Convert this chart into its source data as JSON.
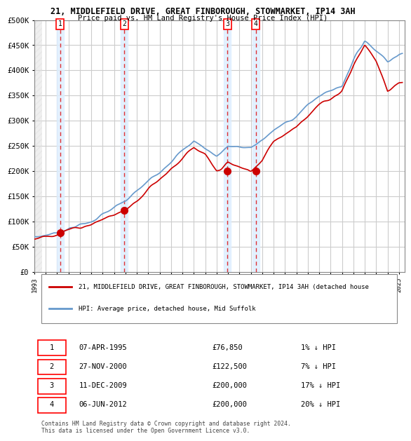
{
  "title1": "21, MIDDLEFIELD DRIVE, GREAT FINBOROUGH, STOWMARKET, IP14 3AH",
  "title2": "Price paid vs. HM Land Registry's House Price Index (HPI)",
  "xlim_start": 1993.0,
  "xlim_end": 2025.5,
  "ylim_min": 0,
  "ylim_max": 500000,
  "yticks": [
    0,
    50000,
    100000,
    150000,
    200000,
    250000,
    300000,
    350000,
    400000,
    450000,
    500000
  ],
  "ytick_labels": [
    "£0",
    "£50K",
    "£100K",
    "£150K",
    "£200K",
    "£250K",
    "£300K",
    "£350K",
    "£400K",
    "£450K",
    "£500K"
  ],
  "sale_dates": [
    1995.27,
    2000.9,
    2009.95,
    2012.44
  ],
  "sale_prices": [
    76850,
    122500,
    200000,
    200000
  ],
  "sale_labels": [
    "1",
    "2",
    "3",
    "4"
  ],
  "vline_color": "#dd0000",
  "sale_dot_color": "#cc0000",
  "hpi_line_color": "#6699cc",
  "price_line_color": "#cc0000",
  "legend_line1": "21, MIDDLEFIELD DRIVE, GREAT FINBOROUGH, STOWMARKET, IP14 3AH (detached house",
  "legend_line2": "HPI: Average price, detached house, Mid Suffolk",
  "table_entries": [
    {
      "num": "1",
      "date": "07-APR-1995",
      "price": "£76,850",
      "hpi": "1% ↓ HPI"
    },
    {
      "num": "2",
      "date": "27-NOV-2000",
      "price": "£122,500",
      "hpi": "7% ↓ HPI"
    },
    {
      "num": "3",
      "date": "11-DEC-2009",
      "price": "£200,000",
      "hpi": "17% ↓ HPI"
    },
    {
      "num": "4",
      "date": "06-JUN-2012",
      "price": "£200,000",
      "hpi": "20% ↓ HPI"
    }
  ],
  "footer": "Contains HM Land Registry data © Crown copyright and database right 2024.\nThis data is licensed under the Open Government Licence v3.0.",
  "bg_color": "#ffffff",
  "hatch_color": "#cccccc",
  "grid_color": "#cccccc",
  "highlight_color": "#ddeeff"
}
